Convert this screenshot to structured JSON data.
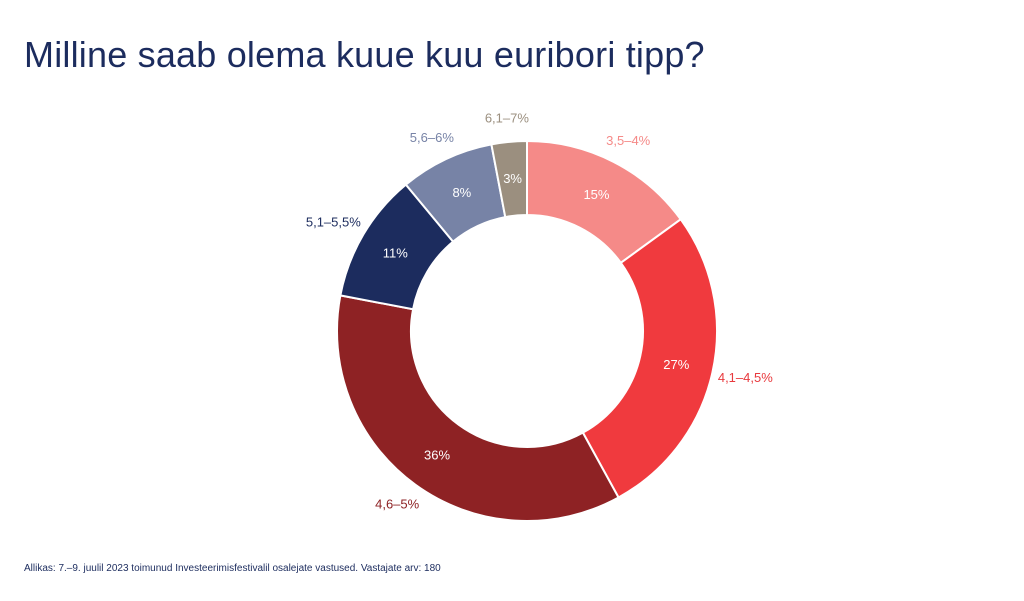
{
  "title": "Milline saab olema kuue kuu euribori tipp?",
  "source": "Allikas: 7.–9. juulil 2023 toimunud Investeerimisfestivalil osalejate vastused. Vastajate arv: 180",
  "chart_data": {
    "type": "pie",
    "variant": "donut",
    "title": "Milline saab olema kuue kuu euribori tipp?",
    "categories": [
      "3,5–4%",
      "4,1–4,5%",
      "4,6–5%",
      "5,1–5,5%",
      "5,6–6%",
      "6,1–7%"
    ],
    "values": [
      15,
      27,
      36,
      11,
      8,
      3
    ],
    "value_labels": [
      "15%",
      "27%",
      "36%",
      "11%",
      "8%",
      "3%"
    ],
    "colors": [
      "#f58a88",
      "#f03a3e",
      "#8e2224",
      "#1c2c5e",
      "#7783a6",
      "#9b8f7f"
    ],
    "label_colors": [
      "#f58a88",
      "#e8393d",
      "#8e2224",
      "#1c2c5e",
      "#7783a6",
      "#9b8f7f"
    ],
    "value_label_color": "#ffffff",
    "legend": "none"
  }
}
